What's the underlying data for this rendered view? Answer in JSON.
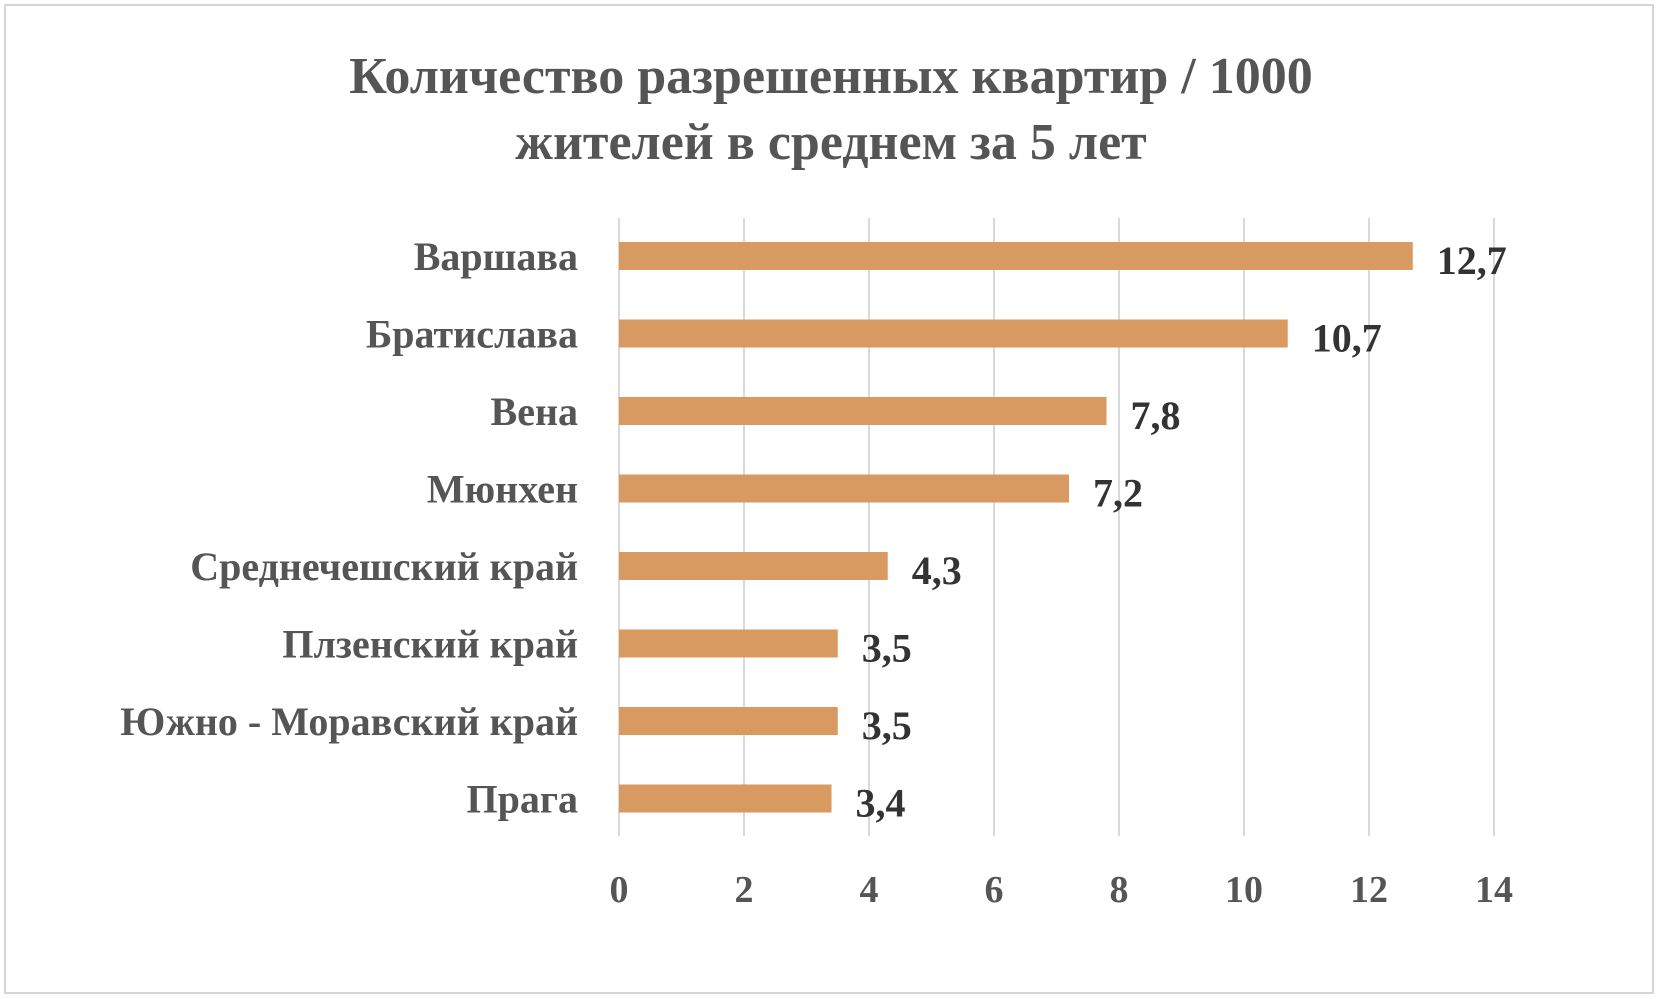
{
  "chart_data": {
    "type": "bar",
    "orientation": "horizontal",
    "title_lines": [
      "Количество разрешенных квартир / 1000",
      "жителей в среднем за 5 лет"
    ],
    "categories": [
      "Варшава",
      "Братислава",
      "Вена",
      "Мюнхен",
      "Среднечешский край",
      "Плзенский край",
      "Южно - Моравский край",
      "Прага"
    ],
    "values": [
      12.7,
      10.7,
      7.8,
      7.2,
      4.3,
      3.5,
      3.5,
      3.4
    ],
    "value_labels": [
      "12,7",
      "10,7",
      "7,8",
      "7,2",
      "4,3",
      "3,5",
      "3,5",
      "3,4"
    ],
    "xlim": [
      0,
      14
    ],
    "ticks": [
      0,
      2,
      4,
      6,
      8,
      10,
      12,
      14
    ],
    "tick_labels": [
      "0",
      "2",
      "4",
      "6",
      "8",
      "10",
      "12",
      "14"
    ],
    "grid": "vertical",
    "legend": "none",
    "bar_color": "#d99a62",
    "grid_color": "#d9d9d9"
  }
}
